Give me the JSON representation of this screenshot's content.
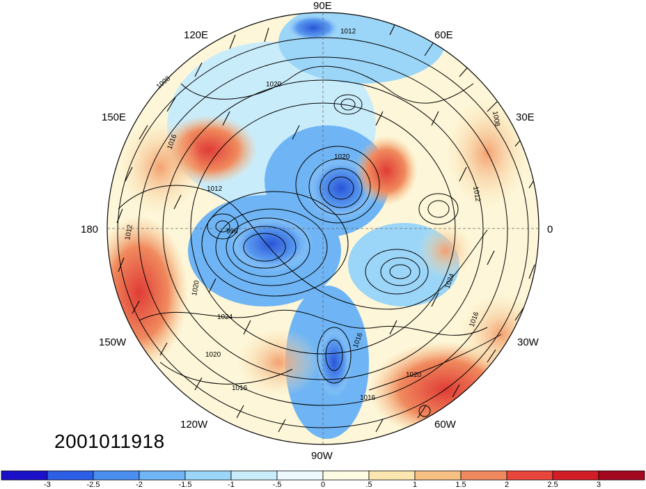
{
  "map": {
    "projection": "north-polar-stereographic",
    "longitude_labels": [
      "90E",
      "60E",
      "30E",
      "0",
      "30W",
      "60W",
      "90W",
      "120W",
      "150W",
      "180",
      "150E",
      "120E"
    ],
    "shading_variable_colors": {
      "warm_anomaly": "#e8453c",
      "cold_anomaly": "#2f6fd8",
      "neutral": "#fdfbe8"
    },
    "contour_labels": [
      "1012",
      "1008",
      "1020",
      "1016",
      "1024",
      "996",
      "1008",
      "1012",
      "1016",
      "1020",
      "1024",
      "1016",
      "1016",
      "1020",
      "1020",
      "1012",
      "1020",
      "1012",
      "1016"
    ]
  },
  "timestamp": "2001011918",
  "colorbar": {
    "tick_labels": [
      "-3",
      "-2.5",
      "-2",
      "-1.5",
      "-1",
      "-.5",
      "0",
      ".5",
      "1",
      "1.5",
      "2",
      "2.5",
      "3"
    ],
    "colors": [
      "#1a10c8",
      "#2d5ee6",
      "#4a8ef0",
      "#6fb5f5",
      "#9bd6f8",
      "#c9ecfb",
      "#eef9fd",
      "#fdfbe1",
      "#fbe6b0",
      "#f8c184",
      "#f08a5e",
      "#e8453c",
      "#d11e26",
      "#a3081e"
    ]
  }
}
